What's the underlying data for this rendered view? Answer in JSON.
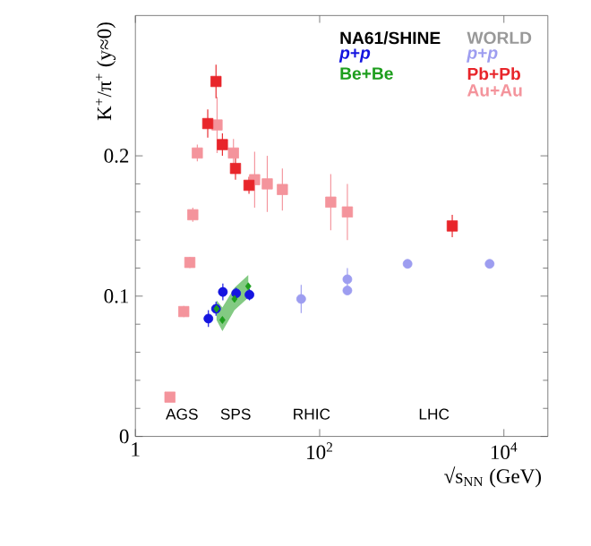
{
  "chart_data": {
    "type": "scatter",
    "xlabel": "√s$_{NN}$ (GeV)",
    "ylabel": "K$^{+}$/π$^{+}$ (y≈0)",
    "log": "x",
    "xlim": [
      1,
      30000
    ],
    "ylim": [
      0,
      0.3
    ],
    "xticks": [
      1,
      {
        "value": 100,
        "label": "10$^{2}$"
      },
      {
        "value": 10000,
        "label": "10$^{4}$"
      }
    ],
    "yticks": [
      0,
      0.1,
      0.2
    ],
    "grid": false,
    "legend": "top right",
    "annotations": [
      "NA61/SHINE",
      "WORLD",
      "AGS",
      "SPS",
      "RHIC",
      "LHC"
    ],
    "series": [
      {
        "name": "*p*+*p*",
        "color": "#1515e0",
        "marker": "circle",
        "x": [
          6.2,
          7.5,
          8.9,
          12.4,
          17.3
        ],
        "values": [
          0.084,
          0.091,
          0.103,
          0.102,
          0.101
        ],
        "errors": [
          0.006,
          0.005,
          0.006,
          0.004,
          0.004
        ]
      },
      {
        "name": "Be+Be",
        "color": "#1e9e1e",
        "marker": "diamond",
        "x": [
          7.6,
          8.8,
          11.9,
          16.8
        ],
        "values": [
          0.091,
          0.083,
          0.098,
          0.107
        ],
        "lower": [
          0.083,
          0.075,
          0.09,
          0.099
        ],
        "upper": [
          0.097,
          0.092,
          0.106,
          0.115
        ]
      },
      {
        "name": "*p*+*p*",
        "color": "#9d9df0",
        "marker": "circle",
        "x": [
          63,
          200,
          200,
          900,
          7000
        ],
        "values": [
          0.098,
          0.112,
          0.104,
          0.123,
          0.123
        ],
        "errors": [
          0.01,
          0.008,
          null,
          0.003,
          0.003
        ]
      },
      {
        "name": "Pb+Pb",
        "color": "#e8252a",
        "marker": "square",
        "x": [
          6.1,
          7.5,
          8.8,
          12.2,
          17.1,
          2750
        ],
        "values": [
          0.223,
          0.253,
          0.208,
          0.191,
          0.179,
          0.15
        ],
        "errors": [
          0.01,
          0.012,
          0.008,
          0.008,
          0.006,
          0.008
        ]
      },
      {
        "name": "Au+Au",
        "color": "#f4949c",
        "marker": "square",
        "x": [
          2.37,
          3.35,
          3.9,
          4.2,
          4.7,
          7.7,
          11.6,
          19.7,
          27,
          39.4,
          132,
          200
        ],
        "values": [
          0.028,
          0.089,
          0.124,
          0.158,
          0.202,
          0.222,
          0.202,
          0.183,
          0.18,
          0.176,
          0.167,
          0.16
        ],
        "errors": [
          0.003,
          0.004,
          0.004,
          0.005,
          0.006,
          0.02,
          0.01,
          0.02,
          0.02,
          0.015,
          0.02,
          0.02
        ]
      }
    ]
  }
}
